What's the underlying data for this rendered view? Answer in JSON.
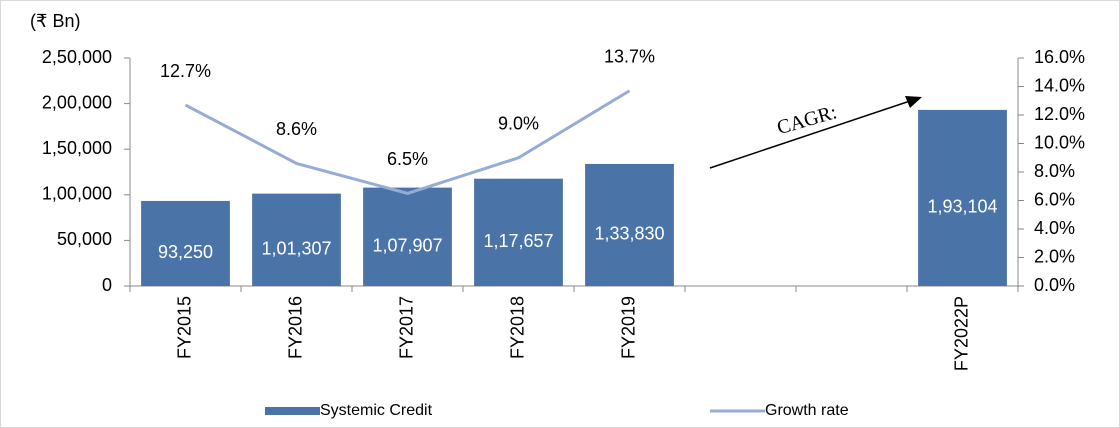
{
  "chart_data": {
    "type": "bar",
    "unit_label": "(₹ Bn)",
    "annotation": "CAGR:",
    "categories": [
      "FY2015",
      "FY2016",
      "FY2017",
      "FY2018",
      "FY2019",
      null,
      null,
      "FY2022P"
    ],
    "series": [
      {
        "name": "Systemic Credit",
        "type": "bar",
        "color": "#4a74a8",
        "values": [
          93250,
          101307,
          107907,
          117657,
          133830,
          null,
          null,
          193104
        ],
        "value_labels": [
          "93,250",
          "1,01,307",
          "1,07,907",
          "1,17,657",
          "1,33,830",
          null,
          null,
          "1,93,104"
        ]
      },
      {
        "name": "Growth rate",
        "type": "line",
        "axis": "y2",
        "color": "#95acd4",
        "values": [
          12.7,
          8.6,
          6.5,
          9.0,
          13.7,
          null,
          null,
          null
        ],
        "value_labels": [
          "12.7%",
          "8.6%",
          "6.5%",
          "9.0%",
          "13.7%",
          null,
          null,
          null
        ]
      }
    ],
    "ylim": [
      0,
      250000
    ],
    "yticks": [
      0,
      {
        "value": 50000,
        "label": "50,000"
      },
      {
        "value": 100000,
        "label": "1,00,000"
      },
      {
        "value": 150000,
        "label": "1,50,000"
      },
      {
        "value": 200000,
        "label": "2,00,000"
      },
      {
        "value": 250000,
        "label": "2,50,000"
      }
    ],
    "y2lim": [
      0,
      16
    ],
    "y2ticks": [
      {
        "value": 0,
        "label": "0.0%"
      },
      {
        "value": 2,
        "label": "2.0%"
      },
      {
        "value": 4,
        "label": "4.0%"
      },
      {
        "value": 6,
        "label": "6.0%"
      },
      {
        "value": 8,
        "label": "8.0%"
      },
      {
        "value": 10,
        "label": "10.0%"
      },
      {
        "value": 12,
        "label": "12.0%"
      },
      {
        "value": 14,
        "label": "14.0%"
      },
      {
        "value": 16,
        "label": "16.0%"
      }
    ],
    "legend": "bottom"
  }
}
